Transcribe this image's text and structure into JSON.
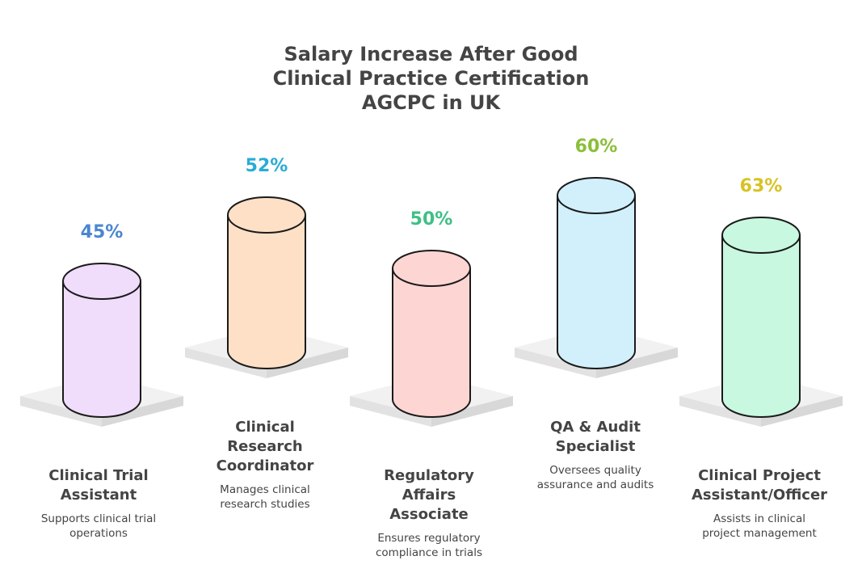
{
  "title_lines": [
    "Salary Increase After Good",
    "Clinical Practice Certification",
    "AGCPC in UK"
  ],
  "chart_data": {
    "type": "bar",
    "categories": [
      "Clinical Trial Assistant",
      "Clinical Research Coordinator",
      "Regulatory Affairs Associate",
      "QA & Audit Specialist",
      "Clinical Project Assistant/Officer"
    ],
    "values": [
      45,
      52,
      50,
      60,
      63
    ],
    "value_labels": [
      "45%",
      "52%",
      "50%",
      "60%",
      "63%"
    ],
    "colors": {
      "fills": [
        "#f0dcfb",
        "#fde0c6",
        "#fdd6d3",
        "#d2f0fb",
        "#c8f8e0"
      ],
      "labels": [
        "#4a86d0",
        "#29acd4",
        "#3fbf86",
        "#8bbf3a",
        "#d8c222"
      ]
    }
  },
  "items": [
    {
      "name_lines": [
        "Clinical Trial",
        "Assistant"
      ],
      "desc_lines": [
        "Supports clinical trial",
        "operations"
      ]
    },
    {
      "name_lines": [
        "Clinical",
        "Research",
        "Coordinator"
      ],
      "desc_lines": [
        "Manages clinical",
        "research studies"
      ]
    },
    {
      "name_lines": [
        "Regulatory",
        "Affairs",
        "Associate"
      ],
      "desc_lines": [
        "Ensures regulatory",
        "compliance in trials"
      ]
    },
    {
      "name_lines": [
        "QA & Audit",
        "Specialist"
      ],
      "desc_lines": [
        "Oversees quality",
        "assurance and audits"
      ]
    },
    {
      "name_lines": [
        "Clinical Project",
        "Assistant/Officer"
      ],
      "desc_lines": [
        "Assists in clinical",
        "project management"
      ]
    }
  ]
}
